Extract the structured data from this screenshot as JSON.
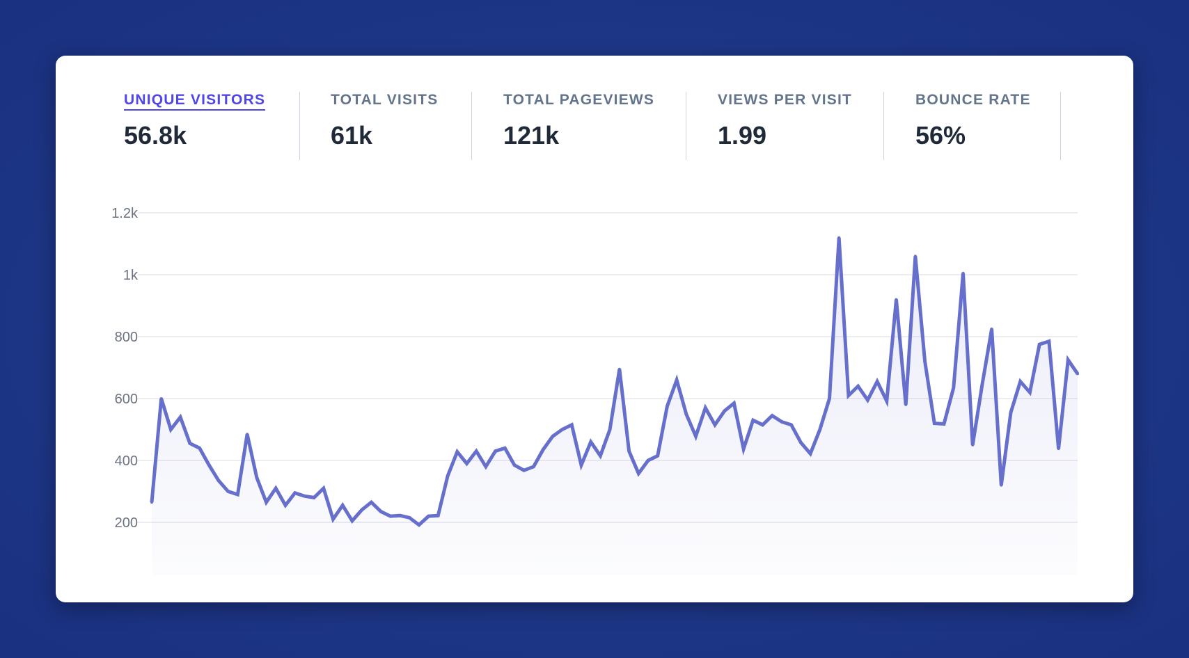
{
  "stats": [
    {
      "label": "UNIQUE VISITORS",
      "value": "56.8k",
      "active": true
    },
    {
      "label": "TOTAL VISITS",
      "value": "61k",
      "active": false
    },
    {
      "label": "TOTAL PAGEVIEWS",
      "value": "121k",
      "active": false
    },
    {
      "label": "VIEWS PER VISIT",
      "value": "1.99",
      "active": false
    },
    {
      "label": "BOUNCE RATE",
      "value": "56%",
      "active": false
    }
  ],
  "colors": {
    "line": "#6670cc",
    "active_tab": "#4f46e5",
    "background": "#1e3787"
  },
  "chart_data": {
    "type": "area",
    "xlabel": "",
    "ylabel": "",
    "ylim": [
      30,
      1230
    ],
    "ytick_values": [
      200,
      400,
      600,
      800,
      1000,
      1200
    ],
    "ytick_labels": [
      "200",
      "400",
      "600",
      "800",
      "1k",
      "1.2k"
    ],
    "grid": true,
    "series": [
      {
        "values": [
          265,
          600,
          500,
          540,
          455,
          440,
          385,
          335,
          300,
          290,
          485,
          345,
          265,
          310,
          255,
          295,
          285,
          280,
          310,
          210,
          255,
          205,
          240,
          265,
          235,
          220,
          222,
          215,
          192,
          220,
          222,
          350,
          428,
          390,
          430,
          380,
          430,
          440,
          385,
          368,
          380,
          435,
          478,
          500,
          515,
          385,
          460,
          415,
          500,
          695,
          430,
          358,
          400,
          415,
          575,
          660,
          550,
          478,
          570,
          515,
          560,
          585,
          437,
          530,
          515,
          545,
          525,
          515,
          458,
          422,
          500,
          600,
          1120,
          610,
          640,
          595,
          655,
          592,
          920,
          580,
          1060,
          720,
          520,
          518,
          635,
          1005,
          450,
          645,
          825,
          320,
          555,
          655,
          620,
          775,
          785,
          438,
          725,
          680
        ]
      }
    ]
  }
}
